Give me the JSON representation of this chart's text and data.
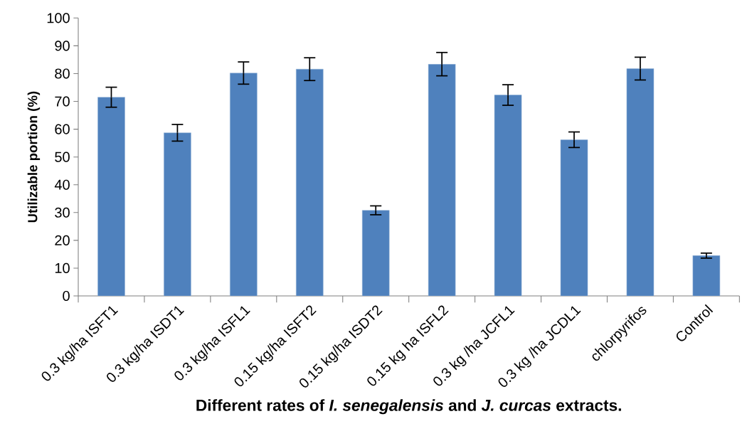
{
  "chart_data": {
    "type": "bar",
    "xlabel": "Different rates of *I. senegalensis* and *J. curcas* extracts.",
    "ylabel": "Utilizable portion (%)",
    "categories": [
      "0.3 kg/ha ISFT1",
      "0.3 kg/ha ISDT1",
      "0.3 kg/ha ISFL1",
      "0.15 kg/ha ISFT2",
      "0.15 kg/ha ISDT2",
      "0.15 kg ha ISFL2",
      "0.3 kg /ha JCFL1",
      "0.3 kg /ha JCDL1",
      "chlorpyrifos",
      "Control"
    ],
    "values": [
      71.5,
      58.7,
      80.2,
      81.6,
      30.8,
      83.4,
      72.3,
      56.2,
      81.8,
      14.5
    ],
    "errors": [
      3.6,
      3.0,
      4.0,
      4.1,
      1.6,
      4.2,
      3.7,
      2.8,
      4.1,
      0.9
    ],
    "color": "#4f81bd",
    "ylim": [
      0,
      100
    ],
    "yticks": [
      0,
      10,
      20,
      30,
      40,
      50,
      60,
      70,
      80,
      90,
      100
    ],
    "grid": false
  }
}
